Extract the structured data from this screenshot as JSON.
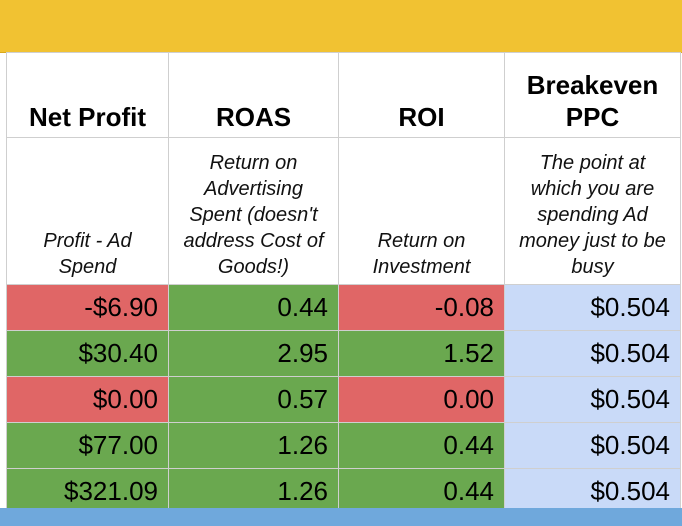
{
  "sheet": {
    "colors": {
      "header_band": "#f1c232",
      "negative": "#e06666",
      "positive": "#6aa84f",
      "breakeven": "#c9daf8",
      "footer_band": "#6fa8dc"
    },
    "headers": {
      "net_profit": "Net Profit",
      "roas": "ROAS",
      "roi": "ROI",
      "breakeven": "Breakeven PPC"
    },
    "descriptions": {
      "net_profit": "Profit - Ad Spend",
      "roas": "Return on Advertising Spent (doesn't address Cost of Goods!)",
      "roi": "Return on Investment",
      "breakeven": "The point at which you are spending Ad money just to be busy"
    },
    "rows": [
      {
        "net_profit": "-$6.90",
        "roas": "0.44",
        "roi": "-0.08",
        "breakeven": "$0.504"
      },
      {
        "net_profit": "$30.40",
        "roas": "2.95",
        "roi": "1.52",
        "breakeven": "$0.504"
      },
      {
        "net_profit": "$0.00",
        "roas": "0.57",
        "roi": "0.00",
        "breakeven": "$0.504"
      },
      {
        "net_profit": "$77.00",
        "roas": "1.26",
        "roi": "0.44",
        "breakeven": "$0.504"
      },
      {
        "net_profit": "$321.09",
        "roas": "1.26",
        "roi": "0.44",
        "breakeven": "$0.504"
      }
    ]
  }
}
